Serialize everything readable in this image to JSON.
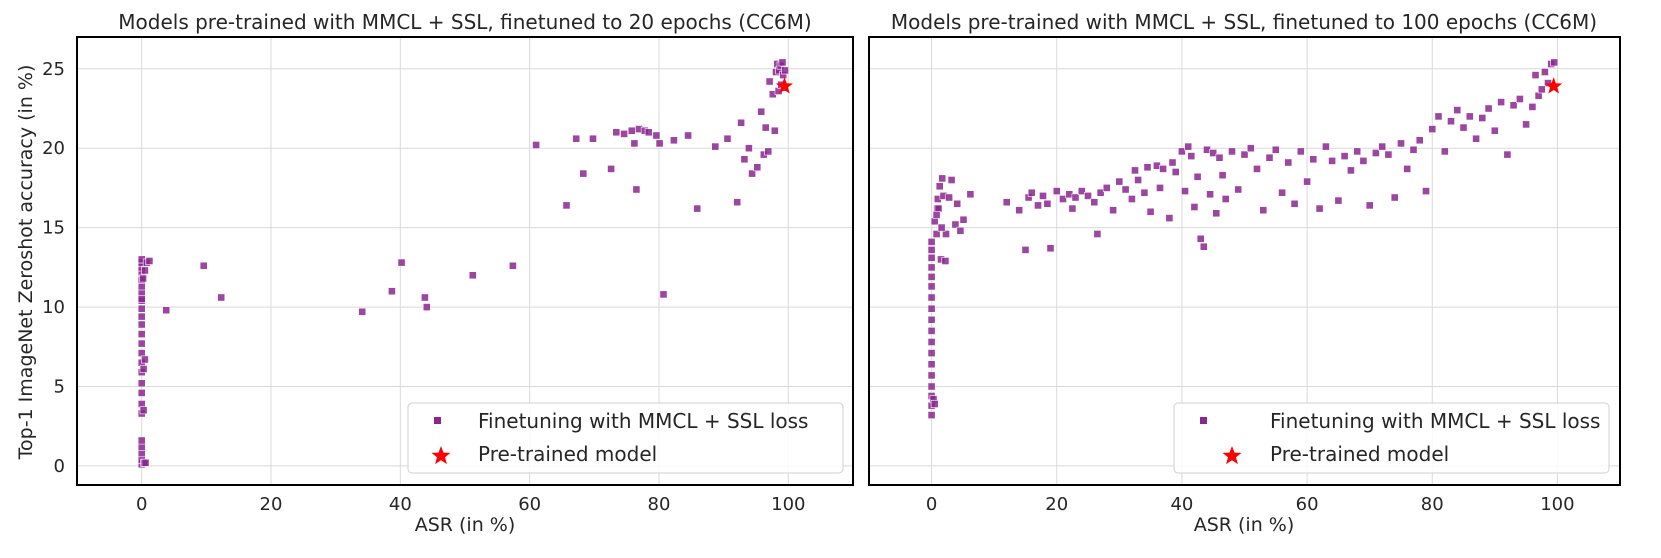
{
  "figure": {
    "ylabel": "Top-1 ImageNet Zeroshot accuracy (in %)",
    "legend": {
      "finetune_label": "Finetuning with MMCL + SSL loss",
      "pretrained_label": "Pre-trained model"
    },
    "colors": {
      "scatter": "#8b2590",
      "star": "#ff0000",
      "grid": "#d9d9d9",
      "frame": "#000000"
    }
  },
  "chart_data": [
    {
      "type": "scatter",
      "title": "Models pre-trained with MMCL + SSL, finetuned to 20 epochs (CC6M)",
      "xlabel": "ASR (in %)",
      "ylabel": "Top-1 ImageNet Zeroshot accuracy (in %)",
      "xlim": [
        -10,
        110
      ],
      "ylim": [
        -1.2,
        27
      ],
      "xticks": [
        "0",
        "20",
        "40",
        "60",
        "80",
        "100"
      ],
      "yticks": [
        "0",
        "5",
        "10",
        "15",
        "20",
        "25"
      ],
      "xtick_values": [
        0,
        20,
        40,
        60,
        80,
        100
      ],
      "ytick_values": [
        0,
        5,
        10,
        15,
        20,
        25
      ],
      "legend_position": "lower right",
      "series": [
        {
          "name": "Finetuning with MMCL + SSL loss",
          "x": [
            0,
            0,
            0,
            0,
            0,
            0,
            0,
            0,
            0,
            0,
            0,
            0,
            0,
            0,
            0,
            0,
            0,
            0,
            0,
            0,
            0,
            0,
            0,
            0,
            0,
            0,
            0.3,
            0.5,
            0.2,
            0.4,
            0.3,
            0.6,
            0.5,
            0.8,
            1.2,
            3.8,
            9.6,
            12.3,
            34.1,
            38.7,
            40.2,
            43.8,
            44.1,
            51.2,
            57.4,
            61,
            65.7,
            67.2,
            68.3,
            69.8,
            72.6,
            73.4,
            74.6,
            75.8,
            76.2,
            76.5,
            76.9,
            77.8,
            78.4,
            79.6,
            80.1,
            80.7,
            82.3,
            84.5,
            85.9,
            88.7,
            90.6,
            92.1,
            92.7,
            93.2,
            93.9,
            94.4,
            95.2,
            95.8,
            96.2,
            96.5,
            96.9,
            97.1,
            97.6,
            97.9,
            98.1,
            98.3,
            98.5,
            98.6,
            98.8,
            98.9,
            99.1,
            99.2,
            99.3,
            99.5
          ],
          "y": [
            0.1,
            0.4,
            0.8,
            1.2,
            1.6,
            3.3,
            3.9,
            4.6,
            5.2,
            5.9,
            6.5,
            7.1,
            7.7,
            8.3,
            8.9,
            9.4,
            9.9,
            10.4,
            10.9,
            11.3,
            11.7,
            12.2,
            12.5,
            12.8,
            13.0,
            10.5,
            6.1,
            6.7,
            11.8,
            0.2,
            3.5,
            0.2,
            12.3,
            12.8,
            12.9,
            9.8,
            12.6,
            10.6,
            9.7,
            11.0,
            12.8,
            10.6,
            10.0,
            12.0,
            12.6,
            20.2,
            16.4,
            20.6,
            18.4,
            20.6,
            18.7,
            21.0,
            20.9,
            21.1,
            20.3,
            17.4,
            21.2,
            21.1,
            21.0,
            20.8,
            20.3,
            10.8,
            20.5,
            20.8,
            16.2,
            20.1,
            20.6,
            16.6,
            21.6,
            19.3,
            20.0,
            18.4,
            18.8,
            22.3,
            19.6,
            21.3,
            19.8,
            24.2,
            23.4,
            21.1,
            24.8,
            25.3,
            23.6,
            24.9,
            25.2,
            24.0,
            25.4,
            24.6,
            23.8,
            24.9
          ]
        },
        {
          "name": "Pre-trained model",
          "x": [
            99.4
          ],
          "y": [
            23.9
          ]
        }
      ]
    },
    {
      "type": "scatter",
      "title": "Models pre-trained with MMCL + SSL, finetuned to 100 epochs (CC6M)",
      "xlabel": "ASR (in %)",
      "ylabel": "",
      "xlim": [
        -10,
        110
      ],
      "ylim": [
        -1.2,
        27
      ],
      "xticks": [
        "0",
        "20",
        "40",
        "60",
        "80",
        "100"
      ],
      "yticks": [],
      "xtick_values": [
        0,
        20,
        40,
        60,
        80,
        100
      ],
      "ytick_values": [
        0,
        5,
        10,
        15,
        20,
        25
      ],
      "legend_position": "lower right",
      "series": [
        {
          "name": "Finetuning with MMCL + SSL loss",
          "x": [
            0,
            0,
            0,
            0,
            0,
            0,
            0,
            0,
            0,
            0,
            0,
            0,
            0,
            0,
            0,
            0,
            0,
            0,
            0.3,
            0.5,
            0.8,
            1.0,
            1.3,
            0.5,
            0.9,
            1.7,
            1.9,
            2.3,
            2.8,
            3.2,
            3.8,
            4.1,
            4.6,
            5.1,
            6.2,
            1.5,
            2.2,
            1.1,
            0.8,
            1.6,
            12,
            14,
            15,
            15.5,
            16,
            17,
            17.8,
            18.5,
            19,
            20,
            21,
            22,
            22.5,
            23,
            24,
            25,
            26,
            26.5,
            27,
            28,
            29,
            30,
            31,
            32,
            32.5,
            33,
            34,
            34.5,
            35,
            36,
            36.5,
            37,
            38,
            38.5,
            39,
            40,
            40.5,
            41,
            41.5,
            42,
            42.5,
            43,
            43.5,
            44,
            44.5,
            45,
            45.5,
            46,
            46.5,
            47,
            48,
            49,
            50,
            51,
            52,
            53,
            54,
            55,
            56,
            57,
            58,
            59,
            60,
            61,
            62,
            63,
            64,
            65,
            66,
            67,
            68,
            69,
            70,
            71,
            72,
            73,
            74,
            75,
            76,
            77,
            78,
            79,
            80,
            81,
            82,
            83,
            84,
            85,
            86,
            87,
            88,
            89,
            90,
            91,
            92,
            93,
            94,
            95,
            96,
            97,
            98,
            99,
            99.5,
            98.5,
            97.5,
            96.5
          ],
          "y": [
            3.2,
            3.8,
            4.4,
            5.0,
            5.7,
            6.4,
            7.1,
            7.8,
            8.5,
            9.2,
            9.9,
            10.6,
            11.3,
            11.9,
            12.5,
            13.1,
            13.6,
            14.1,
            4.2,
            3.9,
            14.6,
            16.8,
            17.6,
            15.4,
            16.2,
            18.1,
            17.0,
            14.6,
            16.9,
            18.0,
            15.2,
            16.5,
            14.8,
            15.5,
            17.1,
            13.0,
            12.9,
            16.2,
            15.8,
            15.0,
            16.6,
            16.1,
            13.6,
            16.9,
            17.2,
            16.4,
            17.0,
            16.5,
            13.7,
            17.3,
            16.8,
            17.1,
            16.2,
            16.9,
            17.3,
            17.0,
            16.6,
            14.6,
            17.2,
            17.5,
            16.1,
            17.9,
            17.4,
            16.8,
            18.6,
            18.0,
            17.2,
            18.8,
            16.0,
            18.9,
            17.5,
            18.7,
            15.6,
            19.1,
            18.5,
            19.8,
            17.3,
            20.1,
            19.5,
            16.3,
            18.2,
            14.3,
            13.8,
            19.9,
            17.1,
            19.7,
            15.9,
            19.4,
            18.3,
            16.8,
            19.8,
            17.4,
            19.6,
            20.0,
            18.7,
            16.1,
            19.4,
            19.9,
            17.2,
            19.1,
            16.5,
            19.8,
            17.9,
            19.3,
            16.2,
            20.1,
            19.2,
            16.7,
            19.5,
            18.6,
            19.8,
            19.2,
            16.4,
            19.7,
            20.1,
            19.6,
            16.9,
            20.3,
            18.7,
            19.9,
            20.5,
            17.3,
            21.2,
            22.0,
            19.8,
            21.7,
            22.4,
            21.3,
            22.0,
            20.6,
            21.9,
            22.5,
            21.1,
            22.9,
            19.6,
            22.7,
            23.1,
            21.5,
            22.6,
            23.3,
            24.8,
            25.3,
            25.4,
            24.1,
            23.7,
            24.6
          ]
        },
        {
          "name": "Pre-trained model",
          "x": [
            99.4
          ],
          "y": [
            23.9
          ]
        }
      ]
    }
  ]
}
